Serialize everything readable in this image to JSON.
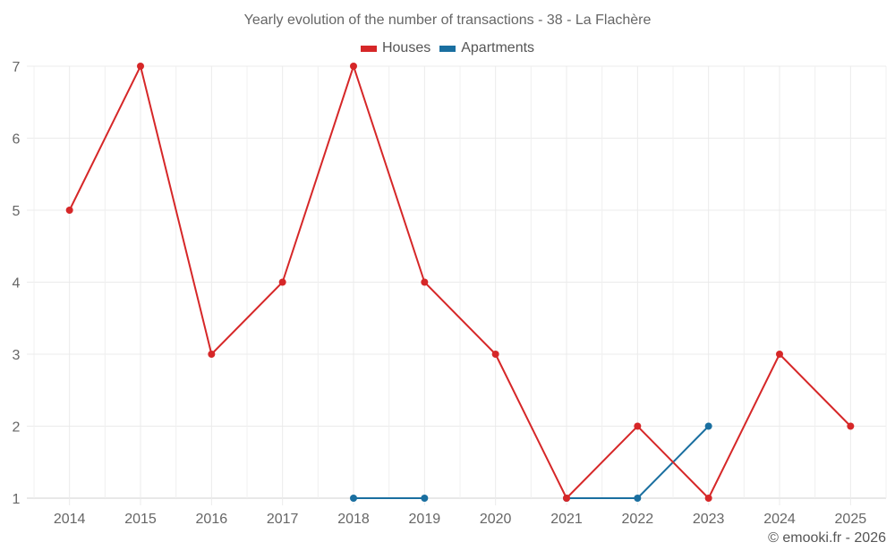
{
  "chart_data": {
    "type": "line",
    "title": "Yearly evolution of the number of transactions - 38 - La Flachère",
    "xlabel": "",
    "ylabel": "",
    "categories": [
      "2014",
      "2015",
      "2016",
      "2017",
      "2018",
      "2019",
      "2020",
      "2021",
      "2022",
      "2023",
      "2024",
      "2025"
    ],
    "ylim": [
      1,
      7
    ],
    "yticks": [
      1,
      2,
      3,
      4,
      5,
      6,
      7
    ],
    "grid": true,
    "legend_position": "top",
    "series": [
      {
        "name": "Houses",
        "color": "#d62728",
        "values": [
          5,
          7,
          3,
          4,
          7,
          4,
          3,
          1,
          2,
          1,
          3,
          2
        ]
      },
      {
        "name": "Apartments",
        "color": "#1a6fa0",
        "values": [
          null,
          null,
          null,
          null,
          1,
          1,
          null,
          1,
          1,
          2,
          null,
          null
        ]
      }
    ]
  },
  "legend": {
    "items": [
      {
        "label": "Houses",
        "color": "#d62728"
      },
      {
        "label": "Apartments",
        "color": "#1a6fa0"
      }
    ]
  },
  "footer": {
    "credit": "© emooki.fr - 2026"
  }
}
